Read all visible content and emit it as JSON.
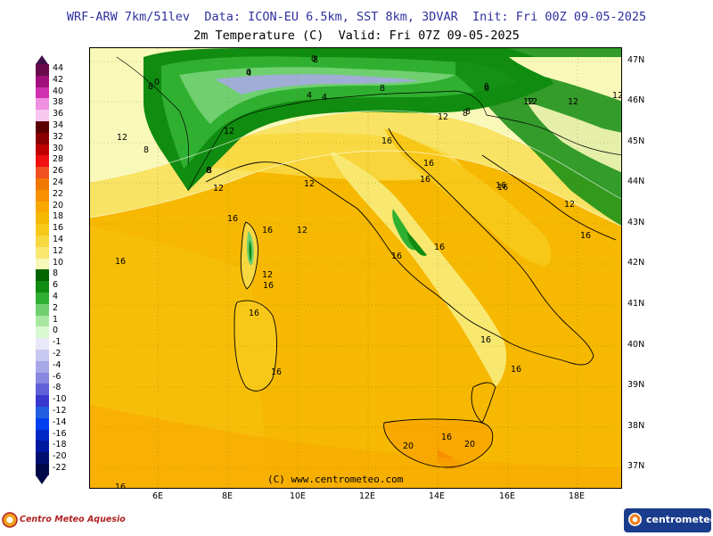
{
  "header": {
    "line1": "WRF-ARW 7km/51lev  Data: ICON-EU 6.5km, SST 8km, 3DVAR  Init: Fri 00Z 09-05-2025",
    "line2": "2m Temperature (C)  Valid: Fri 07Z 09-05-2025"
  },
  "axes": {
    "lat_labels": [
      "47N",
      "46N",
      "45N",
      "44N",
      "43N",
      "42N",
      "41N",
      "40N",
      "39N",
      "38N",
      "37N"
    ],
    "lon_labels": [
      "6E",
      "8E",
      "10E",
      "12E",
      "14E",
      "16E",
      "18E"
    ]
  },
  "colorbar": {
    "levels": [
      {
        "label": "44",
        "color": "#6a0a4a"
      },
      {
        "label": "42",
        "color": "#a0107a"
      },
      {
        "label": "40",
        "color": "#d030b0"
      },
      {
        "label": "38",
        "color": "#f090e0"
      },
      {
        "label": "36",
        "color": "#f8c8f0"
      },
      {
        "label": "34",
        "color": "#5a0000"
      },
      {
        "label": "32",
        "color": "#8a0000"
      },
      {
        "label": "30",
        "color": "#c00000"
      },
      {
        "label": "28",
        "color": "#f01010"
      },
      {
        "label": "26",
        "color": "#f05020"
      },
      {
        "label": "24",
        "color": "#f07800"
      },
      {
        "label": "22",
        "color": "#f89000"
      },
      {
        "label": "20",
        "color": "#f8a800"
      },
      {
        "label": "18",
        "color": "#f6b800"
      },
      {
        "label": "16",
        "color": "#f8c818"
      },
      {
        "label": "14",
        "color": "#f8d840"
      },
      {
        "label": "12",
        "color": "#f8e870"
      },
      {
        "label": "10",
        "color": "#f8f8b8"
      },
      {
        "label": "8",
        "color": "#006400"
      },
      {
        "label": "6",
        "color": "#108c10"
      },
      {
        "label": "4",
        "color": "#30b030"
      },
      {
        "label": "2",
        "color": "#70d070"
      },
      {
        "label": "1",
        "color": "#a8e8a0"
      },
      {
        "label": "0",
        "color": "#d8f8d0"
      },
      {
        "label": "-1",
        "color": "#e8e8f8"
      },
      {
        "label": "-2",
        "color": "#c8c8f0"
      },
      {
        "label": "-4",
        "color": "#a8a8e8"
      },
      {
        "label": "-6",
        "color": "#8888e0"
      },
      {
        "label": "-8",
        "color": "#6060d8"
      },
      {
        "label": "-10",
        "color": "#3838d0"
      },
      {
        "label": "-12",
        "color": "#2060e0"
      },
      {
        "label": "-14",
        "color": "#0040f0"
      },
      {
        "label": "-16",
        "color": "#0028c8"
      },
      {
        "label": "-18",
        "color": "#0018a0"
      },
      {
        "label": "-20",
        "color": "#001070"
      },
      {
        "label": "-22",
        "color": "#000848"
      }
    ],
    "top_arrow_color": "#40104a",
    "bottom_arrow_color": "#000848"
  },
  "contour_labels": [
    "0",
    "4",
    "8",
    "8",
    "6",
    "8",
    "12",
    "12",
    "12",
    "16",
    "16",
    "16",
    "16",
    "16",
    "16",
    "12",
    "12",
    "16",
    "16",
    "16",
    "16",
    "16",
    "20",
    "20",
    "16",
    "12",
    "16",
    "16",
    "12",
    "0",
    "8",
    "12",
    "8",
    "12",
    "4",
    "6",
    "8",
    "12",
    "16",
    "16",
    "16",
    "16",
    "12",
    "8",
    "4",
    "0",
    "8",
    "12"
  ],
  "copyright": "(C) www.centrometeo.com",
  "logo_left": "Centro Meteo Aquesio",
  "logo_right": "centrometeo"
}
